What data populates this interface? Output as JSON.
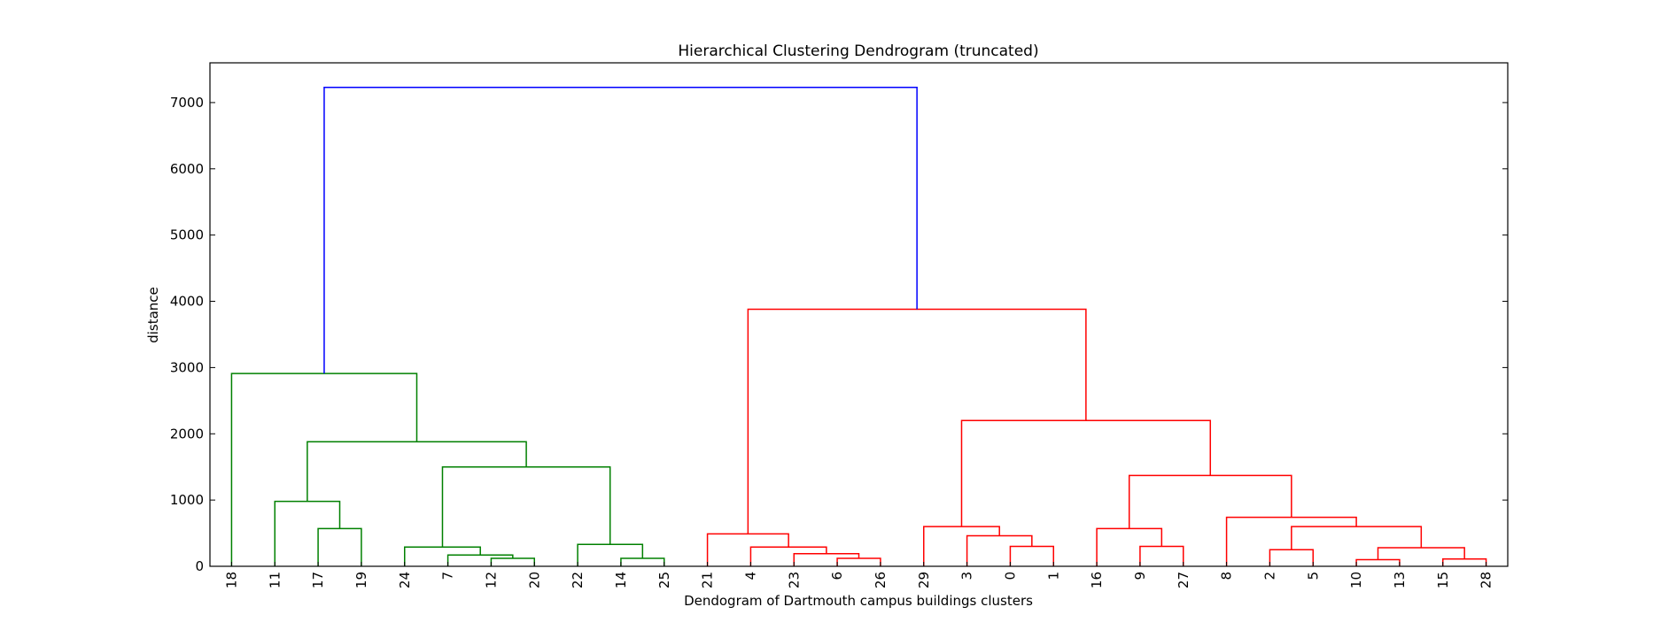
{
  "chart_data": {
    "type": "dendrogram",
    "title": "Hierarchical Clustering Dendrogram (truncated)",
    "xlabel": "Dendogram of Dartmouth campus buildings clusters",
    "ylabel": "distance",
    "ylim": [
      0,
      7600
    ],
    "yticks": [
      0,
      1000,
      2000,
      3000,
      4000,
      5000,
      6000,
      7000
    ],
    "grid": false,
    "colors": {
      "green": "#008000",
      "red": "#ff0000",
      "blue": "#0000ff"
    },
    "leaves": [
      "18",
      "11",
      "17",
      "19",
      "24",
      "7",
      "12",
      "20",
      "22",
      "14",
      "25",
      "21",
      "4",
      "23",
      "6",
      "26",
      "29",
      "3",
      "0",
      "1",
      "16",
      "9",
      "27",
      "8",
      "2",
      "5",
      "10",
      "13",
      "15",
      "28"
    ],
    "merges": [
      {
        "left": "L2",
        "right": "L3",
        "height": 570,
        "color": "green"
      },
      {
        "left": "L1",
        "right": "N0",
        "height": 980,
        "color": "green"
      },
      {
        "left": "L6",
        "right": "L7",
        "height": 120,
        "color": "green"
      },
      {
        "left": "L5",
        "right": "N2",
        "height": 170,
        "color": "green"
      },
      {
        "left": "L4",
        "right": "N3",
        "height": 290,
        "color": "green"
      },
      {
        "left": "L9",
        "right": "L10",
        "height": 120,
        "color": "green"
      },
      {
        "left": "L8",
        "right": "N5",
        "height": 330,
        "color": "green"
      },
      {
        "left": "N4",
        "right": "N6",
        "height": 1500,
        "color": "green"
      },
      {
        "left": "N1",
        "right": "N7",
        "height": 1880,
        "color": "green"
      },
      {
        "left": "L0",
        "right": "N8",
        "height": 2910,
        "color": "green"
      },
      {
        "left": "L14",
        "right": "L15",
        "height": 120,
        "color": "red"
      },
      {
        "left": "L13",
        "right": "N10",
        "height": 190,
        "color": "red"
      },
      {
        "left": "L12",
        "right": "N11",
        "height": 290,
        "color": "red"
      },
      {
        "left": "L11",
        "right": "N12",
        "height": 490,
        "color": "red"
      },
      {
        "left": "L18",
        "right": "L19",
        "height": 300,
        "color": "red"
      },
      {
        "left": "L17",
        "right": "N14",
        "height": 460,
        "color": "red"
      },
      {
        "left": "L16",
        "right": "N15",
        "height": 600,
        "color": "red"
      },
      {
        "left": "L21",
        "right": "L22",
        "height": 300,
        "color": "red"
      },
      {
        "left": "L20",
        "right": "N17",
        "height": 570,
        "color": "red"
      },
      {
        "left": "L24",
        "right": "L25",
        "height": 250,
        "color": "red"
      },
      {
        "left": "L26",
        "right": "L27",
        "height": 100,
        "color": "red"
      },
      {
        "left": "L28",
        "right": "L29",
        "height": 110,
        "color": "red"
      },
      {
        "left": "N20",
        "right": "N21",
        "height": 280,
        "color": "red"
      },
      {
        "left": "N19",
        "right": "N22",
        "height": 600,
        "color": "red"
      },
      {
        "left": "L23",
        "right": "N23",
        "height": 740,
        "color": "red"
      },
      {
        "left": "N18",
        "right": "N24",
        "height": 1370,
        "color": "red"
      },
      {
        "left": "N16",
        "right": "N25",
        "height": 2200,
        "color": "red"
      },
      {
        "left": "N13",
        "right": "N26",
        "height": 3880,
        "color": "red"
      },
      {
        "left": "N9",
        "right": "N27",
        "height": 7230,
        "color": "blue"
      }
    ]
  }
}
